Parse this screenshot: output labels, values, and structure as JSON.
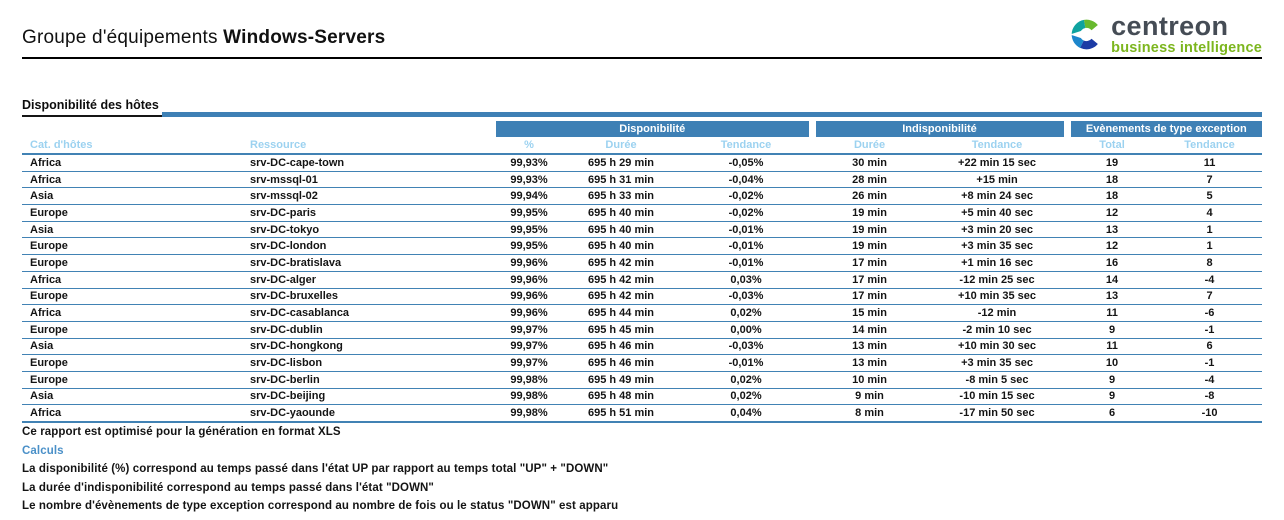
{
  "header": {
    "title_regular": "Groupe d'équipements",
    "title_bold": "Windows-Servers"
  },
  "logo": {
    "name": "centreon",
    "tagline": "business intelligence",
    "icon": "centreon-c-icon",
    "colors": {
      "green": "#68B92E",
      "teal": "#0FA3A0",
      "light_blue": "#1D86CC",
      "navy": "#1C3BA5",
      "wordmark_gray": "#454C55",
      "tagline_green": "#7CB61E"
    }
  },
  "section": {
    "title": "Disponibilité des hôtes"
  },
  "colors": {
    "accent_blue": "#3E80B5",
    "row_line_blue": "#4182B4",
    "subheader_light_blue": "#9CD2F0",
    "calc_label_blue": "#4A90C8"
  },
  "table": {
    "groups": [
      {
        "label": "Disponibilité"
      },
      {
        "label": "Indisponibilité"
      },
      {
        "label": "Evènements de type exception"
      }
    ],
    "columns": [
      "Cat. d'hôtes",
      "Ressource",
      "%",
      "Durée",
      "Tendance",
      "Durée",
      "Tendance",
      "Total",
      "Tendance"
    ],
    "rows": [
      [
        "Africa",
        "srv-DC-cape-town",
        "99,93%",
        "695 h 29 min",
        "-0,05%",
        "30 min",
        "+22 min 15 sec",
        "19",
        "11"
      ],
      [
        "Africa",
        "srv-mssql-01",
        "99,93%",
        "695 h 31 min",
        "-0,04%",
        "28 min",
        "+15 min",
        "18",
        "7"
      ],
      [
        "Asia",
        "srv-mssql-02",
        "99,94%",
        "695 h 33 min",
        "-0,02%",
        "26 min",
        "+8 min 24 sec",
        "18",
        "5"
      ],
      [
        "Europe",
        "srv-DC-paris",
        "99,95%",
        "695 h 40 min",
        "-0,02%",
        "19 min",
        "+5 min 40 sec",
        "12",
        "4"
      ],
      [
        "Asia",
        "srv-DC-tokyo",
        "99,95%",
        "695 h 40 min",
        "-0,01%",
        "19 min",
        "+3 min 20 sec",
        "13",
        "1"
      ],
      [
        "Europe",
        "srv-DC-london",
        "99,95%",
        "695 h 40 min",
        "-0,01%",
        "19 min",
        "+3 min 35 sec",
        "12",
        "1"
      ],
      [
        "Europe",
        "srv-DC-bratislava",
        "99,96%",
        "695 h 42 min",
        "-0,01%",
        "17 min",
        "+1 min 16 sec",
        "16",
        "8"
      ],
      [
        "Africa",
        "srv-DC-alger",
        "99,96%",
        "695 h 42 min",
        "0,03%",
        "17 min",
        "-12 min 25 sec",
        "14",
        "-4"
      ],
      [
        "Europe",
        "srv-DC-bruxelles",
        "99,96%",
        "695 h 42 min",
        "-0,03%",
        "17 min",
        "+10 min 35 sec",
        "13",
        "7"
      ],
      [
        "Africa",
        "srv-DC-casablanca",
        "99,96%",
        "695 h 44 min",
        "0,02%",
        "15 min",
        "-12 min",
        "11",
        "-6"
      ],
      [
        "Europe",
        "srv-DC-dublin",
        "99,97%",
        "695 h 45 min",
        "0,00%",
        "14 min",
        "-2 min 10 sec",
        "9",
        "-1"
      ],
      [
        "Asia",
        "srv-DC-hongkong",
        "99,97%",
        "695 h 46 min",
        "-0,03%",
        "13 min",
        "+10 min 30 sec",
        "11",
        "6"
      ],
      [
        "Europe",
        "srv-DC-lisbon",
        "99,97%",
        "695 h 46 min",
        "-0,01%",
        "13 min",
        "+3 min 35 sec",
        "10",
        "-1"
      ],
      [
        "Europe",
        "srv-DC-berlin",
        "99,98%",
        "695 h 49 min",
        "0,02%",
        "10 min",
        "-8 min 5 sec",
        "9",
        "-4"
      ],
      [
        "Asia",
        "srv-DC-beijing",
        "99,98%",
        "695 h 48 min",
        "0,02%",
        "9 min",
        "-10 min 15 sec",
        "9",
        "-8"
      ],
      [
        "Africa",
        "srv-DC-yaounde",
        "99,98%",
        "695 h 51 min",
        "0,04%",
        "8 min",
        "-17 min 50 sec",
        "6",
        "-10"
      ]
    ]
  },
  "footer": {
    "note": "Ce rapport est optimisé pour la génération en format XLS",
    "calculs_label": "Calculs",
    "line1": "La disponibilité (%) correspond au temps passé dans l'état UP par rapport au temps total \"UP\" + \"DOWN\"",
    "line2": "La durée d'indisponibilité correspond au temps passé dans l'état \"DOWN\"",
    "line3": "Le nombre d'évènements de type exception correspond au nombre de fois ou le status \"DOWN\" est apparu"
  }
}
